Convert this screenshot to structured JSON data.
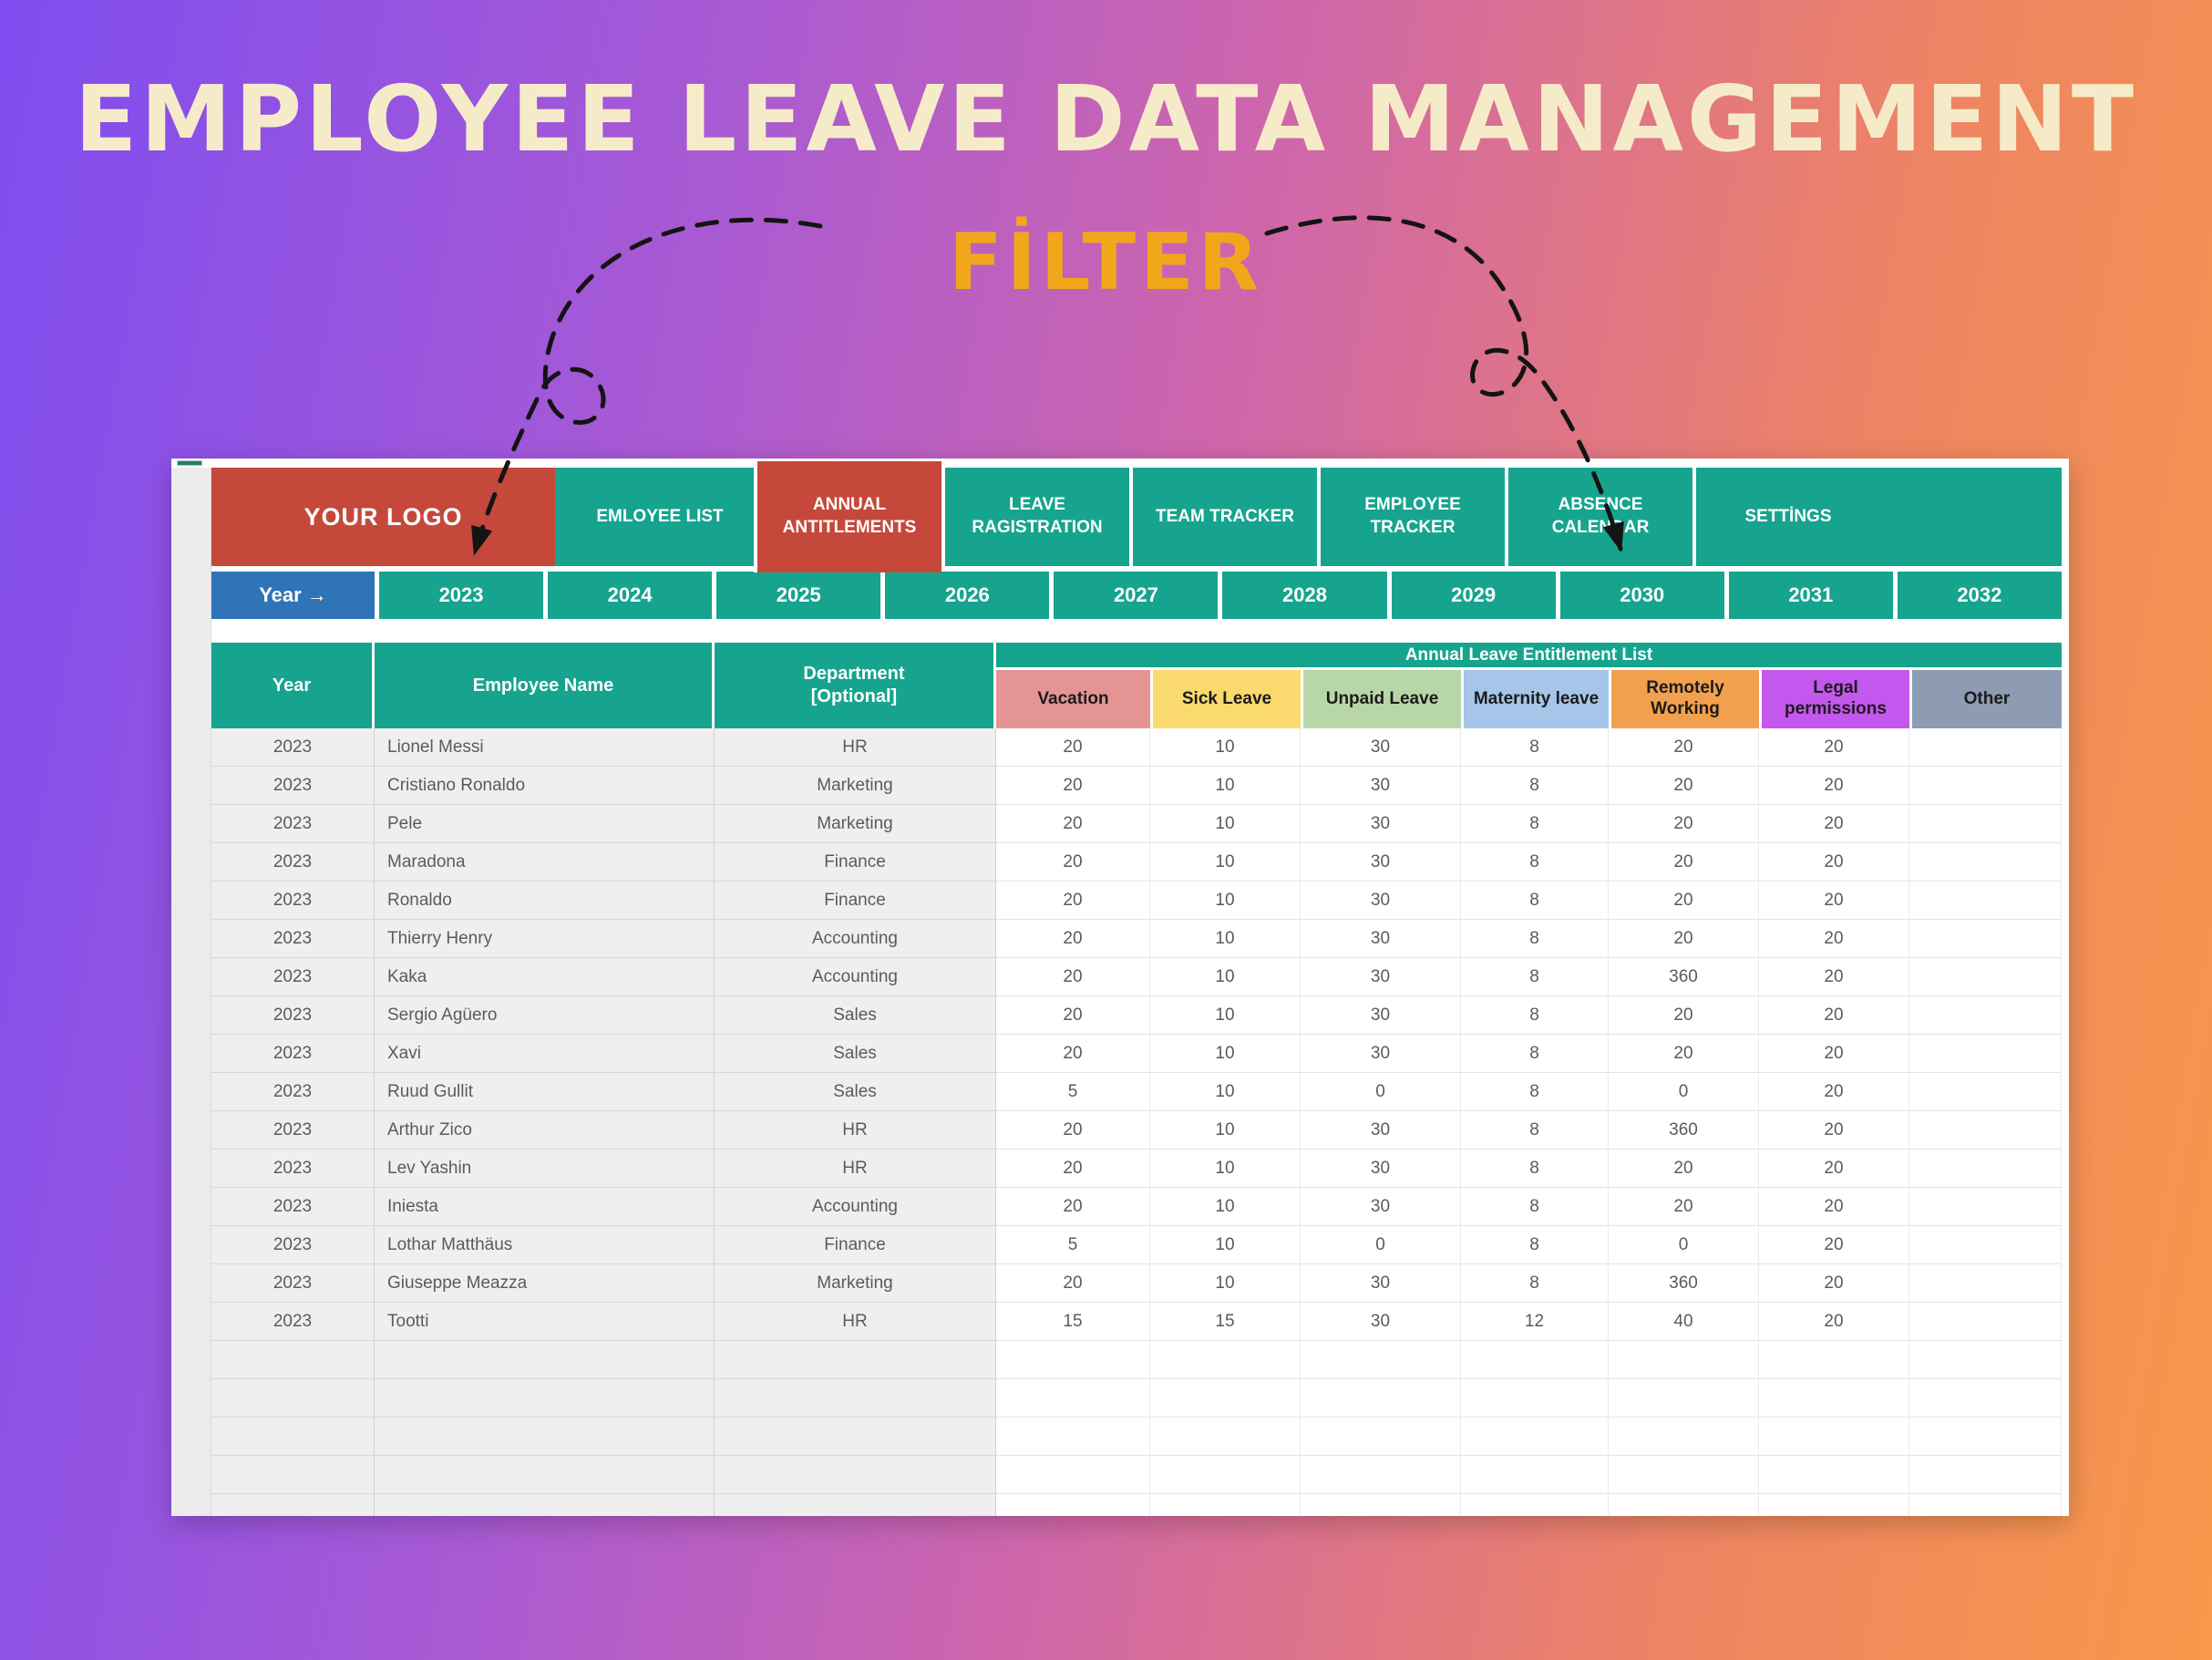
{
  "page": {
    "title": "EMPLOYEE LEAVE DATA MANAGEMENT",
    "subtitle": "FİLTER"
  },
  "nav": {
    "logo": "YOUR LOGO",
    "tabs": [
      {
        "label": "EMLOYEE LIST",
        "active": false
      },
      {
        "label": "ANNUAL ANTITLEMENTS",
        "active": true
      },
      {
        "label": "LEAVE RAGISTRATION",
        "active": false
      },
      {
        "label": "TEAM TRACKER",
        "active": false
      },
      {
        "label": "EMPLOYEE TRACKER",
        "active": false
      },
      {
        "label": "ABSENCE CALENDAR",
        "active": false
      },
      {
        "label": "SETTİNGS",
        "active": false
      }
    ]
  },
  "year_filter": {
    "label": "Year →",
    "years": [
      "2023",
      "2024",
      "2025",
      "2026",
      "2027",
      "2028",
      "2029",
      "2030",
      "2031",
      "2032"
    ]
  },
  "table": {
    "group_header": "Annual Leave Entitlement List",
    "meta_columns": [
      {
        "label": "Year"
      },
      {
        "label": "Employee Name"
      },
      {
        "label": "Department\n[Optional]"
      }
    ],
    "leave_columns": [
      {
        "label": "Vacation",
        "color": "#E59494"
      },
      {
        "label": "Sick Leave",
        "color": "#FADA6E"
      },
      {
        "label": "Unpaid Leave",
        "color": "#B7D7A8"
      },
      {
        "label": "Maternity leave",
        "color": "#A5C5E9"
      },
      {
        "label": "Remotely Working",
        "color": "#F2A04E"
      },
      {
        "label": "Legal permissions",
        "color": "#C457EE"
      },
      {
        "label": "Other",
        "color": "#8D9BB3"
      }
    ],
    "rows": [
      {
        "cells": [
          "2023",
          "Lionel Messi",
          "HR",
          "20",
          "10",
          "30",
          "8",
          "20",
          "20",
          ""
        ]
      },
      {
        "cells": [
          "2023",
          "Cristiano Ronaldo",
          "Marketing",
          "20",
          "10",
          "30",
          "8",
          "20",
          "20",
          ""
        ]
      },
      {
        "cells": [
          "2023",
          "Pele",
          "Marketing",
          "20",
          "10",
          "30",
          "8",
          "20",
          "20",
          ""
        ]
      },
      {
        "cells": [
          "2023",
          "Maradona",
          "Finance",
          "20",
          "10",
          "30",
          "8",
          "20",
          "20",
          ""
        ]
      },
      {
        "cells": [
          "2023",
          "Ronaldo",
          "Finance",
          "20",
          "10",
          "30",
          "8",
          "20",
          "20",
          ""
        ]
      },
      {
        "cells": [
          "2023",
          "Thierry Henry",
          "Accounting",
          "20",
          "10",
          "30",
          "8",
          "20",
          "20",
          ""
        ]
      },
      {
        "cells": [
          "2023",
          "Kaka",
          "Accounting",
          "20",
          "10",
          "30",
          "8",
          "360",
          "20",
          ""
        ]
      },
      {
        "cells": [
          "2023",
          "Sergio Agüero",
          "Sales",
          "20",
          "10",
          "30",
          "8",
          "20",
          "20",
          ""
        ]
      },
      {
        "cells": [
          "2023",
          "Xavi",
          "Sales",
          "20",
          "10",
          "30",
          "8",
          "20",
          "20",
          ""
        ]
      },
      {
        "cells": [
          "2023",
          "Ruud Gullit",
          "Sales",
          "5",
          "10",
          "0",
          "8",
          "0",
          "20",
          ""
        ]
      },
      {
        "cells": [
          "2023",
          "Arthur Zico",
          "HR",
          "20",
          "10",
          "30",
          "8",
          "360",
          "20",
          ""
        ]
      },
      {
        "cells": [
          "2023",
          "Lev Yashin",
          "HR",
          "20",
          "10",
          "30",
          "8",
          "20",
          "20",
          ""
        ]
      },
      {
        "cells": [
          "2023",
          "Iniesta",
          "Accounting",
          "20",
          "10",
          "30",
          "8",
          "20",
          "20",
          ""
        ]
      },
      {
        "cells": [
          "2023",
          "Lothar Matthäus",
          "Finance",
          "5",
          "10",
          "0",
          "8",
          "0",
          "20",
          ""
        ]
      },
      {
        "cells": [
          "2023",
          "Giuseppe Meazza",
          "Marketing",
          "20",
          "10",
          "30",
          "8",
          "360",
          "20",
          ""
        ]
      },
      {
        "cells": [
          "2023",
          "Tootti",
          "HR",
          "15",
          "15",
          "30",
          "12",
          "40",
          "20",
          ""
        ]
      },
      {
        "cells": [
          "",
          "",
          "",
          "",
          "",
          "",
          "",
          "",
          "",
          ""
        ]
      },
      {
        "cells": [
          "",
          "",
          "",
          "",
          "",
          "",
          "",
          "",
          "",
          ""
        ]
      },
      {
        "cells": [
          "",
          "",
          "",
          "",
          "",
          "",
          "",
          "",
          "",
          ""
        ]
      },
      {
        "cells": [
          "",
          "",
          "",
          "",
          "",
          "",
          "",
          "",
          "",
          ""
        ]
      },
      {
        "cells": [
          "",
          "",
          "",
          "",
          "",
          "",
          "",
          "",
          "",
          ""
        ]
      }
    ]
  }
}
